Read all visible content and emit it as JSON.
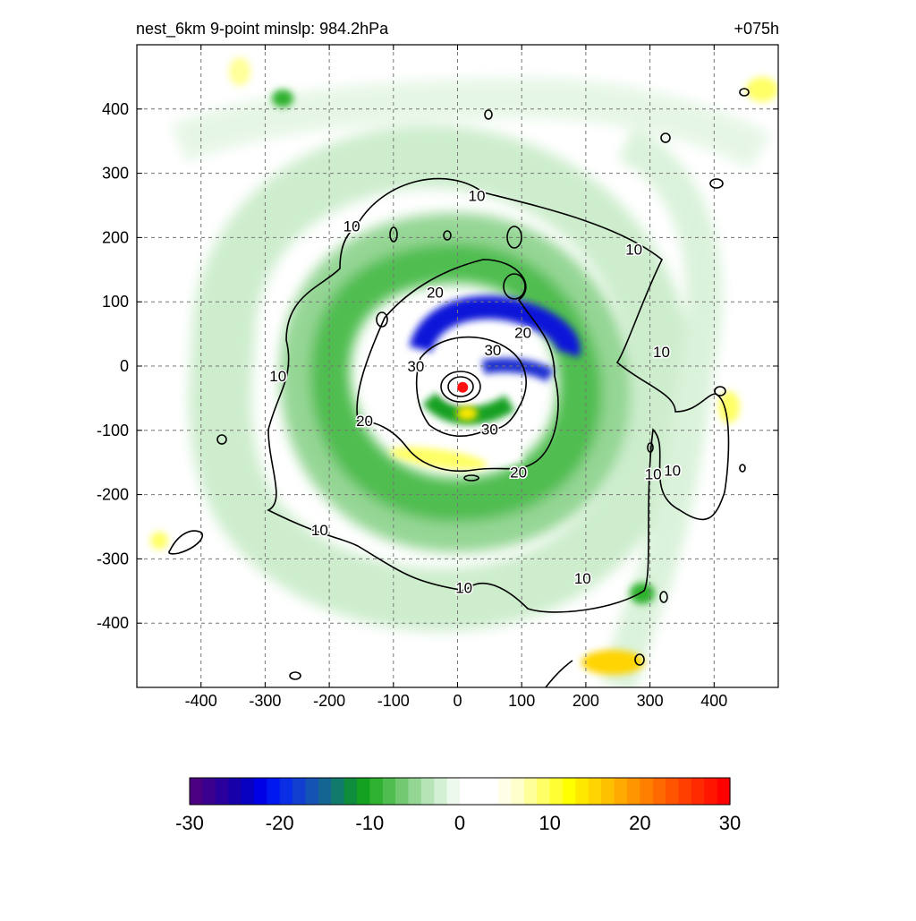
{
  "titles": {
    "left": "nest_6km  9-point minslp: 984.2hPa",
    "right": "+075h"
  },
  "chart_data": {
    "type": "heatmap",
    "title": "nest_6km  9-point minslp: 984.2hPa",
    "forecast_hour": "+075h",
    "xlabel": "",
    "ylabel": "",
    "xlim": [
      -500,
      500
    ],
    "ylim": [
      -500,
      500
    ],
    "xticks": [
      -400,
      -300,
      -200,
      -100,
      0,
      100,
      200,
      300,
      400
    ],
    "yticks": [
      400,
      300,
      200,
      100,
      0,
      -100,
      -200,
      -300,
      -400
    ],
    "grid": true,
    "storm_center": [
      8,
      -33
    ],
    "contour_levels": [
      10,
      20,
      30
    ],
    "contour_labels": [
      {
        "x": 30,
        "y": 265,
        "text": "10"
      },
      {
        "x": -165,
        "y": 218,
        "text": "10"
      },
      {
        "x": 275,
        "y": 182,
        "text": "10"
      },
      {
        "x": 318,
        "y": 22,
        "text": "10"
      },
      {
        "x": -280,
        "y": -15,
        "text": "10"
      },
      {
        "x": 335,
        "y": -162,
        "text": "10"
      },
      {
        "x": 305,
        "y": -168,
        "text": "10"
      },
      {
        "x": -215,
        "y": -255,
        "text": "10"
      },
      {
        "x": 195,
        "y": -330,
        "text": "10"
      },
      {
        "x": 10,
        "y": -345,
        "text": "10"
      },
      {
        "x": -35,
        "y": 115,
        "text": "20"
      },
      {
        "x": 102,
        "y": 52,
        "text": "20"
      },
      {
        "x": -145,
        "y": -85,
        "text": "20"
      },
      {
        "x": 95,
        "y": -165,
        "text": "20"
      },
      {
        "x": 55,
        "y": 25,
        "text": "30"
      },
      {
        "x": -65,
        "y": 0,
        "text": "30"
      },
      {
        "x": 50,
        "y": -98,
        "text": "30"
      }
    ],
    "colorbar": {
      "min": -30,
      "max": 30,
      "tick_labels": [
        "-30",
        "-20",
        "-10",
        "0",
        "10",
        "20",
        "30"
      ],
      "colors": [
        "#4b0082",
        "#3a008e",
        "#29009b",
        "#1800a8",
        "#0800c0",
        "#0000e6",
        "#0018f0",
        "#0a2ee6",
        "#123fd0",
        "#1452b4",
        "#156592",
        "#127a6c",
        "#0e8e3c",
        "#14a020",
        "#2eb12e",
        "#4fbd4f",
        "#72c972",
        "#94d694",
        "#b6e4b6",
        "#d4f0d4",
        "#eef9ee",
        "#ffffff",
        "#ffffff",
        "#ffffff",
        "#ffffe6",
        "#ffffcc",
        "#ffff99",
        "#ffff66",
        "#ffff33",
        "#ffff00",
        "#ffe800",
        "#ffd400",
        "#ffc000",
        "#ffaa00",
        "#ff9600",
        "#ff8000",
        "#ff6a00",
        "#ff5500",
        "#ff3f00",
        "#ff2a00",
        "#ff1500",
        "#ff0000"
      ]
    }
  }
}
